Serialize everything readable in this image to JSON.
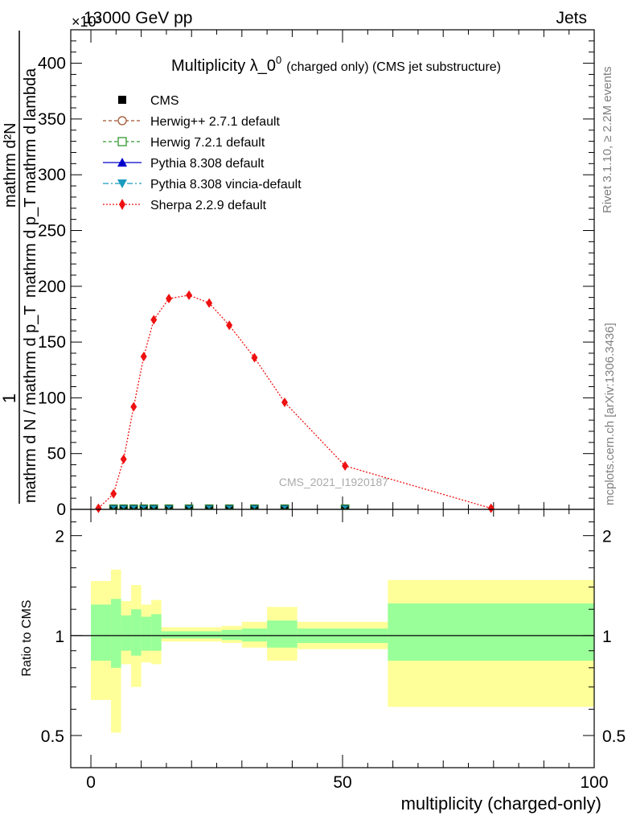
{
  "header": {
    "left": "13000 GeV pp",
    "right": "Jets",
    "exponent": "×10³"
  },
  "side_labels": {
    "top": "Rivet 3.1.10, ≥ 2.2M events",
    "bottom": "mcplots.cern.ch [arXiv:1306.3436]"
  },
  "watermark": "CMS_2021_I1920187",
  "colors": {
    "cms": "#000000",
    "herwigpp": "#a0522d",
    "herwig7": "#339933",
    "pythia": "#0000cc",
    "vincia": "#1a9bbf",
    "sherpa": "#ee1111",
    "band_inner": "#99ff99",
    "band_outer": "#ffff99"
  },
  "chart_data": [
    {
      "type": "line",
      "title": "Multiplicity λ_0⁰ (charged only) (CMS jet substructure)",
      "title_main": "Multiplicity λ_0",
      "title_sup": "0",
      "title_rest": "(charged only) (CMS jet substructure)",
      "ylabel_numerator": "1",
      "ylabel_denominator": "mathrm d N / mathrm d p_T",
      "ylabel_right_top": "mathrm d²N",
      "ylabel_right_bottom": "mathrm d p_T mathrm d lambda",
      "xlim": [
        -4,
        100
      ],
      "ylim": [
        0,
        430
      ],
      "y_ticks": [
        0,
        50,
        100,
        150,
        200,
        250,
        300,
        350,
        400
      ],
      "y_tick_labels": [
        "0",
        "50",
        "100",
        "150",
        "200",
        "250",
        "300",
        "350",
        "400"
      ],
      "legend": [
        {
          "name": "CMS",
          "marker": "square",
          "color_key": "cms"
        },
        {
          "name": "Herwig++ 2.7.1 default",
          "marker": "open-circle",
          "color_key": "herwigpp"
        },
        {
          "name": "Herwig 7.2.1 default",
          "marker": "open-square",
          "color_key": "herwig7"
        },
        {
          "name": "Pythia 8.308 default",
          "marker": "triangle-up",
          "color_key": "pythia"
        },
        {
          "name": "Pythia 8.308 vincia-default",
          "marker": "triangle-down",
          "color_key": "vincia"
        },
        {
          "name": "Sherpa 2.2.9 default",
          "marker": "diamond",
          "color_key": "sherpa"
        }
      ],
      "series": [
        {
          "name": "Sherpa 2.2.9 default",
          "x": [
            1.5,
            4.5,
            6.5,
            8.5,
            10.5,
            12.5,
            15.5,
            19.5,
            23.5,
            27.5,
            32.5,
            38.5,
            50.5,
            79.5
          ],
          "values": [
            1,
            14,
            45,
            92,
            137,
            170,
            189,
            192,
            185,
            165,
            136,
            96,
            39,
            1
          ]
        },
        {
          "name": "CMS and other generators (near zero on this scale)",
          "x": [
            4.5,
            6.5,
            8.5,
            10.5,
            12.5,
            15.5,
            19.5,
            23.5,
            27.5,
            32.5,
            38.5,
            50.5
          ],
          "values": [
            0.5,
            0.5,
            0.5,
            0.5,
            0.5,
            0.5,
            0.5,
            0.5,
            0.5,
            0.5,
            0.5,
            0.5
          ]
        }
      ]
    },
    {
      "type": "area",
      "ylabel": "Ratio to CMS",
      "xlabel": "multiplicity (charged-only)",
      "xlim": [
        -4,
        100
      ],
      "ylim": [
        0.4,
        2.4
      ],
      "y_scale": "log",
      "y_ticks": [
        0.5,
        1,
        2
      ],
      "y_tick_labels": [
        "0.5",
        "1",
        "2"
      ],
      "x_ticks": [
        0,
        50,
        100
      ],
      "x_tick_labels": [
        "0",
        "50",
        "100"
      ],
      "bins": [
        {
          "lo": 0,
          "hi": 4,
          "inner_lo": 0.84,
          "inner_hi": 1.24,
          "outer_lo": 0.64,
          "outer_hi": 1.46
        },
        {
          "lo": 4,
          "hi": 6,
          "inner_lo": 0.8,
          "inner_hi": 1.29,
          "outer_lo": 0.51,
          "outer_hi": 1.58
        },
        {
          "lo": 6,
          "hi": 8,
          "inner_lo": 0.9,
          "inner_hi": 1.15,
          "outer_lo": 0.82,
          "outer_hi": 1.27
        },
        {
          "lo": 8,
          "hi": 10,
          "inner_lo": 0.87,
          "inner_hi": 1.2,
          "outer_lo": 0.7,
          "outer_hi": 1.42
        },
        {
          "lo": 10,
          "hi": 12,
          "inner_lo": 0.9,
          "inner_hi": 1.14,
          "outer_lo": 0.83,
          "outer_hi": 1.24
        },
        {
          "lo": 12,
          "hi": 14,
          "inner_lo": 0.9,
          "inner_hi": 1.16,
          "outer_lo": 0.82,
          "outer_hi": 1.28
        },
        {
          "lo": 14,
          "hi": 21,
          "inner_lo": 0.98,
          "inner_hi": 1.03,
          "outer_lo": 0.96,
          "outer_hi": 1.06
        },
        {
          "lo": 21,
          "hi": 26,
          "inner_lo": 0.98,
          "inner_hi": 1.03,
          "outer_lo": 0.96,
          "outer_hi": 1.06
        },
        {
          "lo": 26,
          "hi": 30,
          "inner_lo": 0.97,
          "inner_hi": 1.04,
          "outer_lo": 0.95,
          "outer_hi": 1.07
        },
        {
          "lo": 30,
          "hi": 35,
          "inner_lo": 0.96,
          "inner_hi": 1.05,
          "outer_lo": 0.92,
          "outer_hi": 1.1
        },
        {
          "lo": 35,
          "hi": 41,
          "inner_lo": 0.92,
          "inner_hi": 1.11,
          "outer_lo": 0.84,
          "outer_hi": 1.22
        },
        {
          "lo": 41,
          "hi": 59,
          "inner_lo": 0.95,
          "inner_hi": 1.05,
          "outer_lo": 0.91,
          "outer_hi": 1.1
        },
        {
          "lo": 59,
          "hi": 100,
          "inner_lo": 0.84,
          "inner_hi": 1.25,
          "outer_lo": 0.61,
          "outer_hi": 1.47
        }
      ]
    }
  ]
}
